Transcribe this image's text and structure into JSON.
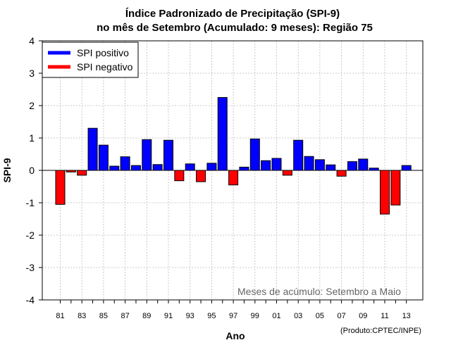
{
  "chart_data": {
    "type": "bar",
    "title": "Índice Padronizado de Precipitação (SPI-9)",
    "subtitle": "no mês de Setembro (Acumulado: 9 meses): Região 75",
    "xlabel": "Ano",
    "ylabel": "SPI-9",
    "ylim": [
      -4,
      4
    ],
    "yticks": [
      "4",
      "3",
      "2",
      "1",
      "0",
      "-1",
      "-2",
      "-3",
      "-4"
    ],
    "ytick_values": [
      4,
      3,
      2,
      1,
      0,
      -1,
      -2,
      -3,
      -4
    ],
    "grid": true,
    "categories": [
      "81",
      "82",
      "83",
      "84",
      "85",
      "86",
      "87",
      "88",
      "89",
      "90",
      "91",
      "92",
      "93",
      "94",
      "95",
      "96",
      "97",
      "98",
      "99",
      "00",
      "01",
      "02",
      "03",
      "04",
      "05",
      "06",
      "07",
      "08",
      "09",
      "10",
      "11",
      "12",
      "13"
    ],
    "tick_labels": [
      "81",
      "83",
      "85",
      "87",
      "89",
      "91",
      "93",
      "95",
      "97",
      "99",
      "01",
      "03",
      "05",
      "07",
      "09",
      "11",
      "13"
    ],
    "values": [
      -1.05,
      -0.05,
      -0.15,
      1.3,
      0.78,
      0.13,
      0.42,
      0.15,
      0.95,
      0.18,
      0.93,
      -0.32,
      0.2,
      -0.35,
      0.22,
      2.25,
      -0.45,
      0.1,
      0.97,
      0.3,
      0.37,
      -0.15,
      0.93,
      0.43,
      0.33,
      0.17,
      -0.18,
      0.27,
      0.35,
      0.07,
      -1.35,
      -1.07,
      0.15
    ],
    "colors": {
      "positive": "#0000ff",
      "negative": "#ff0000"
    },
    "legend": {
      "position": "top-left",
      "entries": [
        {
          "label": "SPI positivo",
          "color": "#0000ff"
        },
        {
          "label": "SPI negativo",
          "color": "#ff0000"
        }
      ]
    },
    "annotation": "Meses de acúmulo: Setembro a Maio",
    "credit": "(Produto:CPTEC/INPE)"
  }
}
